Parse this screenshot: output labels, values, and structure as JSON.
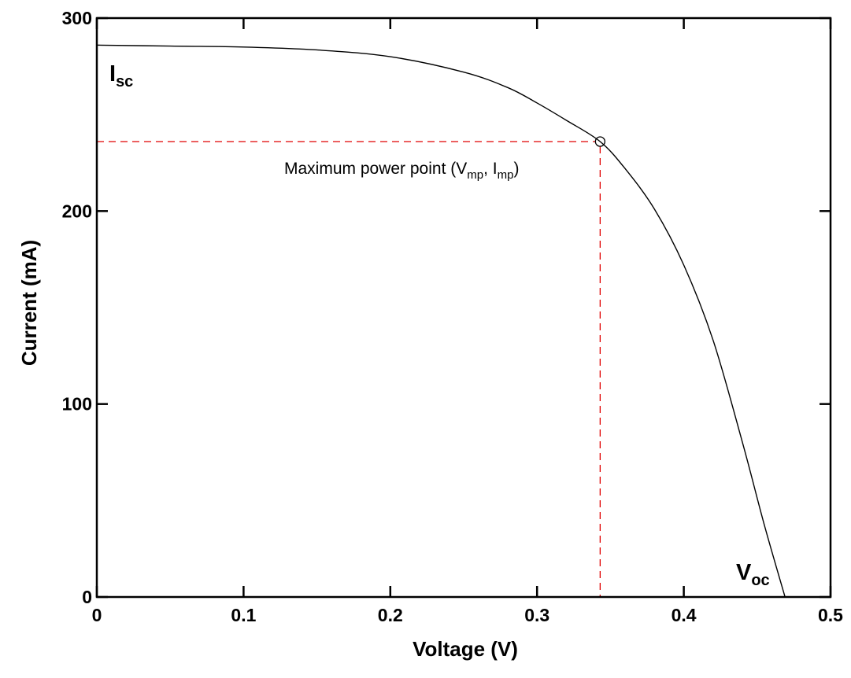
{
  "chart_data": {
    "type": "line",
    "title": "",
    "xlabel": "Voltage (V)",
    "ylabel": "Current (mA)",
    "xlim": [
      0,
      0.5
    ],
    "ylim": [
      0,
      300
    ],
    "x_ticks": [
      0,
      0.1,
      0.2,
      0.3,
      0.4,
      0.5
    ],
    "y_ticks": [
      0,
      100,
      200,
      300
    ],
    "x_tick_labels": [
      "0",
      "0.1",
      "0.2",
      "0.3",
      "0.4",
      "0.5"
    ],
    "y_tick_labels": [
      "0",
      "100",
      "200",
      "300"
    ],
    "grid": false,
    "series": [
      {
        "x": [
          0,
          0.05,
          0.1,
          0.15,
          0.2,
          0.25,
          0.28,
          0.3,
          0.32,
          0.343,
          0.36,
          0.38,
          0.4,
          0.42,
          0.44,
          0.455,
          0.469
        ],
        "y": [
          286,
          285.5,
          285,
          283.5,
          280,
          272,
          264,
          256,
          247,
          236,
          222,
          201,
          172,
          133,
          80,
          37,
          0
        ],
        "color": "#000000"
      }
    ],
    "marker_point": {
      "x": 0.343,
      "y": 236
    },
    "annotations": {
      "mpp_main": "Maximum power point (V",
      "mpp_sub1": "mp",
      "mpp_sep": ", I",
      "mpp_sub2": "mp",
      "mpp_close": ")",
      "isc_main": "I",
      "isc_sub": "sc",
      "voc_main": "V",
      "voc_sub": "oc"
    },
    "colors": {
      "curve": "#000000",
      "guide": "#e00000",
      "axes": "#000000"
    }
  }
}
